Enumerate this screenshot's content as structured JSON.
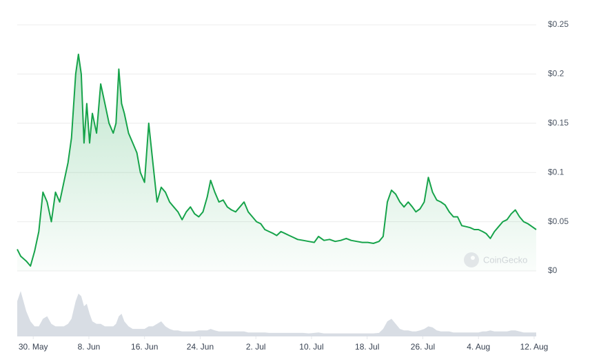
{
  "chart_data": {
    "type": "line",
    "watermark": "CoinGecko",
    "x": [
      -2.3,
      -1.8,
      -1.0,
      -0.4,
      0.2,
      0.8,
      1.4,
      2.0,
      2.6,
      3.2,
      3.8,
      4.4,
      5.0,
      5.5,
      6.1,
      6.5,
      6.9,
      7.3,
      7.7,
      8.1,
      8.5,
      9.1,
      9.7,
      10.3,
      10.9,
      11.5,
      11.9,
      12.3,
      12.7,
      13.1,
      13.7,
      14.3,
      14.9,
      15.4,
      16.0,
      16.6,
      17.2,
      17.8,
      18.4,
      19.0,
      19.6,
      20.2,
      20.8,
      21.4,
      22.0,
      22.6,
      23.2,
      23.8,
      24.4,
      25.0,
      25.5,
      26.1,
      26.7,
      27.3,
      27.9,
      28.5,
      29.1,
      29.7,
      30.3,
      30.9,
      31.5,
      32.1,
      32.7,
      33.3,
      33.9,
      34.5,
      35.0,
      35.6,
      36.2,
      36.8,
      37.4,
      38.0,
      38.8,
      39.6,
      40.4,
      41.0,
      41.8,
      42.6,
      43.4,
      44.2,
      45.0,
      45.7,
      46.5,
      47.3,
      48.1,
      48.9,
      49.7,
      50.3,
      50.9,
      51.5,
      52.1,
      52.7,
      53.3,
      53.9,
      54.5,
      55.0,
      55.6,
      56.2,
      56.8,
      57.4,
      58.0,
      58.6,
      59.2,
      59.8,
      60.4,
      61.0,
      61.6,
      62.2,
      62.8,
      63.4,
      64.0,
      64.6,
      65.1,
      65.7,
      66.3,
      66.9,
      67.5,
      68.1,
      68.7,
      69.3,
      69.9,
      70.5,
      71.1,
      71.7,
      72.3
    ],
    "series": [
      {
        "name": "Price",
        "color": "#16a34a",
        "values": [
          0.022,
          0.015,
          0.01,
          0.005,
          0.02,
          0.04,
          0.08,
          0.07,
          0.05,
          0.08,
          0.07,
          0.09,
          0.11,
          0.135,
          0.2,
          0.22,
          0.2,
          0.13,
          0.17,
          0.13,
          0.16,
          0.14,
          0.19,
          0.17,
          0.15,
          0.14,
          0.15,
          0.205,
          0.17,
          0.16,
          0.14,
          0.13,
          0.12,
          0.1,
          0.09,
          0.15,
          0.11,
          0.07,
          0.085,
          0.08,
          0.07,
          0.065,
          0.06,
          0.052,
          0.06,
          0.065,
          0.058,
          0.055,
          0.06,
          0.075,
          0.092,
          0.08,
          0.07,
          0.072,
          0.065,
          0.062,
          0.06,
          0.065,
          0.07,
          0.06,
          0.055,
          0.05,
          0.048,
          0.042,
          0.04,
          0.038,
          0.036,
          0.04,
          0.038,
          0.036,
          0.034,
          0.032,
          0.031,
          0.03,
          0.029,
          0.035,
          0.031,
          0.032,
          0.03,
          0.031,
          0.033,
          0.031,
          0.03,
          0.029,
          0.029,
          0.028,
          0.03,
          0.035,
          0.07,
          0.082,
          0.078,
          0.07,
          0.065,
          0.07,
          0.065,
          0.06,
          0.063,
          0.07,
          0.095,
          0.08,
          0.072,
          0.07,
          0.067,
          0.06,
          0.055,
          0.055,
          0.046,
          0.045,
          0.044,
          0.042,
          0.042,
          0.04,
          0.038,
          0.033,
          0.04,
          0.045,
          0.05,
          0.052,
          0.058,
          0.062,
          0.055,
          0.05,
          0.048,
          0.045,
          0.042
        ]
      },
      {
        "name": "Volume",
        "color": "#d8dde4",
        "axis": "y2",
        "values": [
          0.7,
          0.9,
          0.5,
          0.3,
          0.2,
          0.2,
          0.35,
          0.4,
          0.25,
          0.2,
          0.2,
          0.2,
          0.25,
          0.35,
          0.7,
          0.85,
          0.8,
          0.6,
          0.65,
          0.45,
          0.3,
          0.25,
          0.25,
          0.2,
          0.2,
          0.2,
          0.25,
          0.4,
          0.45,
          0.3,
          0.2,
          0.15,
          0.15,
          0.15,
          0.15,
          0.2,
          0.2,
          0.25,
          0.3,
          0.2,
          0.15,
          0.12,
          0.12,
          0.1,
          0.1,
          0.1,
          0.1,
          0.12,
          0.12,
          0.12,
          0.15,
          0.12,
          0.1,
          0.1,
          0.1,
          0.1,
          0.1,
          0.1,
          0.1,
          0.08,
          0.08,
          0.08,
          0.08,
          0.08,
          0.07,
          0.07,
          0.07,
          0.07,
          0.07,
          0.07,
          0.07,
          0.07,
          0.07,
          0.06,
          0.07,
          0.08,
          0.06,
          0.06,
          0.06,
          0.06,
          0.06,
          0.06,
          0.06,
          0.06,
          0.06,
          0.06,
          0.07,
          0.15,
          0.3,
          0.35,
          0.25,
          0.15,
          0.12,
          0.12,
          0.1,
          0.1,
          0.12,
          0.15,
          0.2,
          0.18,
          0.12,
          0.1,
          0.1,
          0.1,
          0.08,
          0.08,
          0.08,
          0.08,
          0.08,
          0.08,
          0.08,
          0.1,
          0.1,
          0.12,
          0.1,
          0.1,
          0.1,
          0.1,
          0.12,
          0.12,
          0.1,
          0.08,
          0.08,
          0.08,
          0.08
        ]
      }
    ],
    "xlim": [
      -2.3,
      72.3
    ],
    "xticks": [
      {
        "value": 0,
        "label": "30. May"
      },
      {
        "value": 8,
        "label": "8. Jun"
      },
      {
        "value": 16,
        "label": "16. Jun"
      },
      {
        "value": 24,
        "label": "24. Jun"
      },
      {
        "value": 32,
        "label": "2. Jul"
      },
      {
        "value": 40,
        "label": "10. Jul"
      },
      {
        "value": 48,
        "label": "18. Jul"
      },
      {
        "value": 56,
        "label": "26. Jul"
      },
      {
        "value": 64,
        "label": "4. Aug"
      },
      {
        "value": 72,
        "label": "12. Aug"
      }
    ],
    "ylim": [
      0,
      0.25
    ],
    "yticks": [
      {
        "value": 0,
        "label": "$0"
      },
      {
        "value": 0.05,
        "label": "$0.05"
      },
      {
        "value": 0.1,
        "label": "$0.1"
      },
      {
        "value": 0.15,
        "label": "$0.15"
      },
      {
        "value": 0.2,
        "label": "$0.2"
      },
      {
        "value": 0.25,
        "label": "$0.25"
      }
    ],
    "y2lim": [
      0,
      1
    ],
    "grid": true
  }
}
